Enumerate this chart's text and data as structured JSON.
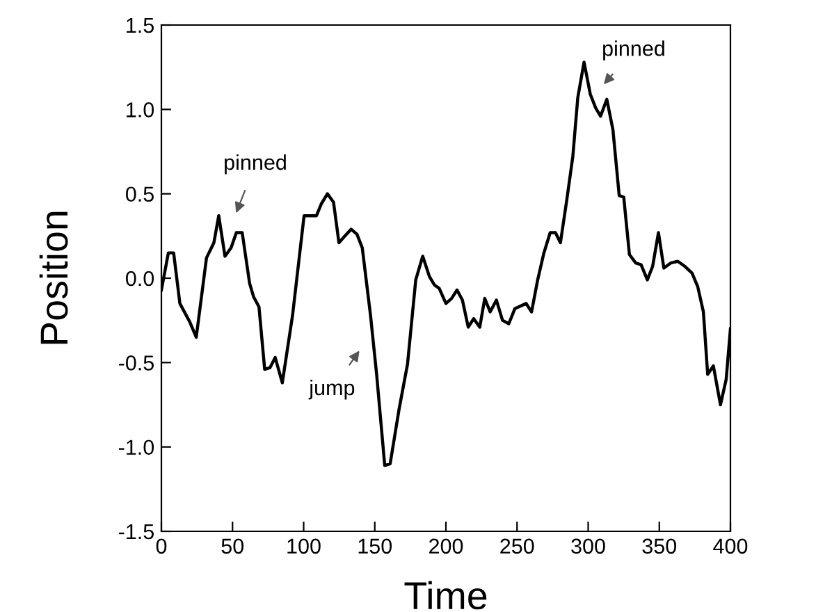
{
  "chart_data": {
    "type": "line",
    "xlabel": "Time",
    "ylabel": "Position",
    "x": [
      0,
      4.9,
      8.6,
      13,
      20,
      24.5,
      31.7,
      36.9,
      40.3,
      44.7,
      49,
      52.7,
      56.8,
      62,
      64.8,
      68.6,
      72.6,
      76.4,
      80,
      85,
      92.2,
      100.3,
      105.2,
      109,
      112.4,
      116.7,
      121,
      124.8,
      129,
      133.4,
      137.5,
      141.2,
      147,
      151.3,
      157,
      160.8,
      167,
      173,
      178.8,
      183.7,
      188.4,
      191.9,
      195.3,
      200,
      204,
      207.8,
      211.6,
      215.7,
      219.5,
      223.8,
      227.3,
      231.1,
      235.5,
      239.8,
      244.2,
      248.5,
      256.4,
      260.2,
      264.5,
      268.9,
      273.3,
      277,
      280.5,
      284.9,
      289.2,
      292.7,
      297.1,
      301.5,
      305.2,
      308.7,
      313.1,
      317.4,
      321.8,
      325,
      329,
      333.4,
      337.2,
      341.6,
      345.3,
      349.4,
      353.2,
      358,
      363,
      368,
      373,
      377,
      381,
      384,
      388,
      393,
      397,
      400
    ],
    "series": [
      {
        "color": "#000000",
        "values": [
          -0.07,
          0.15,
          0.15,
          -0.15,
          -0.26,
          -0.35,
          0.12,
          0.21,
          0.37,
          0.13,
          0.18,
          0.27,
          0.27,
          -0.03,
          -0.11,
          -0.17,
          -0.54,
          -0.53,
          -0.47,
          -0.62,
          -0.22,
          0.37,
          0.37,
          0.37,
          0.44,
          0.5,
          0.45,
          0.21,
          0.25,
          0.29,
          0.26,
          0.18,
          -0.22,
          -0.57,
          -1.11,
          -1.1,
          -0.78,
          -0.51,
          -0.01,
          0.13,
          0.01,
          -0.04,
          -0.06,
          -0.15,
          -0.12,
          -0.07,
          -0.13,
          -0.29,
          -0.24,
          -0.29,
          -0.12,
          -0.2,
          -0.13,
          -0.25,
          -0.27,
          -0.18,
          -0.15,
          -0.2,
          -0.01,
          0.15,
          0.27,
          0.27,
          0.21,
          0.46,
          0.72,
          1.07,
          1.28,
          1.09,
          1.01,
          0.96,
          1.06,
          0.88,
          0.49,
          0.48,
          0.14,
          0.09,
          0.08,
          -0.01,
          0.07,
          0.27,
          0.06,
          0.09,
          0.1,
          0.07,
          0.03,
          -0.05,
          -0.2,
          -0.57,
          -0.52,
          -0.75,
          -0.6,
          -0.3
        ]
      }
    ],
    "xlim": [
      0,
      400
    ],
    "xticks": [
      0,
      50,
      100,
      150,
      200,
      250,
      300,
      350,
      400
    ],
    "ylim": [
      -1.5,
      1.5
    ],
    "yticks": [
      {
        "value": -1.5,
        "label": "-1.5"
      },
      {
        "value": -1.0,
        "label": "-1.0"
      },
      {
        "value": -0.5,
        "label": "-0.5"
      },
      {
        "value": 0.0,
        "label": "0.0"
      },
      {
        "value": 0.5,
        "label": "0.5"
      },
      {
        "value": 1.0,
        "label": "1.0"
      },
      {
        "value": 1.5,
        "label": "1.5"
      }
    ],
    "annotations": [
      "pinned",
      "jump",
      "pinned"
    ],
    "grid": false,
    "marker": "none",
    "line_style": "solid"
  }
}
